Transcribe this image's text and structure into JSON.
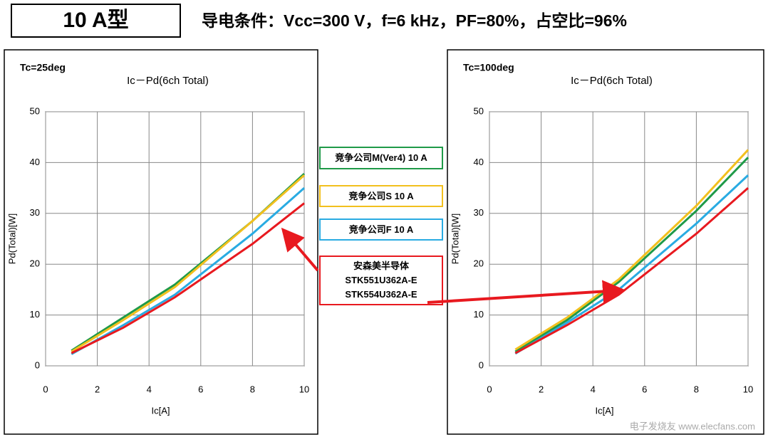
{
  "header": {
    "badge": "10 A型",
    "conditions": "导电条件：Vcc=300 V，f=6 kHz，PF=80%，占空比=96%"
  },
  "watermark": "电子发烧友 www.elecfans.com",
  "chart_data": [
    {
      "type": "line",
      "annotation": "Tc=25deg",
      "title": "Ic－Pd(6ch Total)",
      "xlabel": "Ic[A]",
      "ylabel": "Pd(Total)[W]",
      "xlim": [
        0,
        10
      ],
      "xticks": [
        0,
        2,
        4,
        6,
        8,
        10
      ],
      "ylim": [
        0,
        50
      ],
      "yticks": [
        0,
        10,
        20,
        30,
        40,
        50
      ],
      "grid": true,
      "x": [
        1,
        3,
        5,
        8,
        10
      ],
      "series": [
        {
          "name": "竞争公司M(Ver4) 10 A",
          "color": "#1f9a48",
          "values": [
            3,
            9.5,
            16,
            28.5,
            37.8
          ]
        },
        {
          "name": "竞争公司S 10 A",
          "color": "#f2c01e",
          "values": [
            2.8,
            9,
            15.5,
            28.5,
            37.5
          ]
        },
        {
          "name": "竞争公司F 10 A",
          "color": "#29abe2",
          "values": [
            2.3,
            8,
            14,
            26,
            35
          ]
        },
        {
          "name": "安森美半导体\nSTK551U362A-E\nSTK554U362A-E",
          "color": "#e8191f",
          "values": [
            2.5,
            7.5,
            13.5,
            24,
            32
          ]
        }
      ]
    },
    {
      "type": "line",
      "annotation": "Tc=100deg",
      "title": "Ic－Pd(6ch Total)",
      "xlabel": "Ic[A]",
      "ylabel": "Pd(Total)[W]",
      "xlim": [
        0,
        10
      ],
      "xticks": [
        0,
        2,
        4,
        6,
        8,
        10
      ],
      "ylim": [
        0,
        50
      ],
      "yticks": [
        0,
        10,
        20,
        30,
        40,
        50
      ],
      "grid": true,
      "x": [
        1,
        3,
        5,
        8,
        10
      ],
      "series": [
        {
          "color": "#1f9a48",
          "values": [
            2.8,
            9,
            16.5,
            30.5,
            41
          ]
        },
        {
          "color": "#f2c01e",
          "values": [
            3.2,
            9.5,
            17,
            31.5,
            42.5
          ]
        },
        {
          "color": "#29abe2",
          "values": [
            2.4,
            8.5,
            15,
            28,
            37.5
          ]
        },
        {
          "color": "#e8191f",
          "values": [
            2.5,
            8,
            14,
            26,
            35
          ]
        }
      ]
    }
  ]
}
